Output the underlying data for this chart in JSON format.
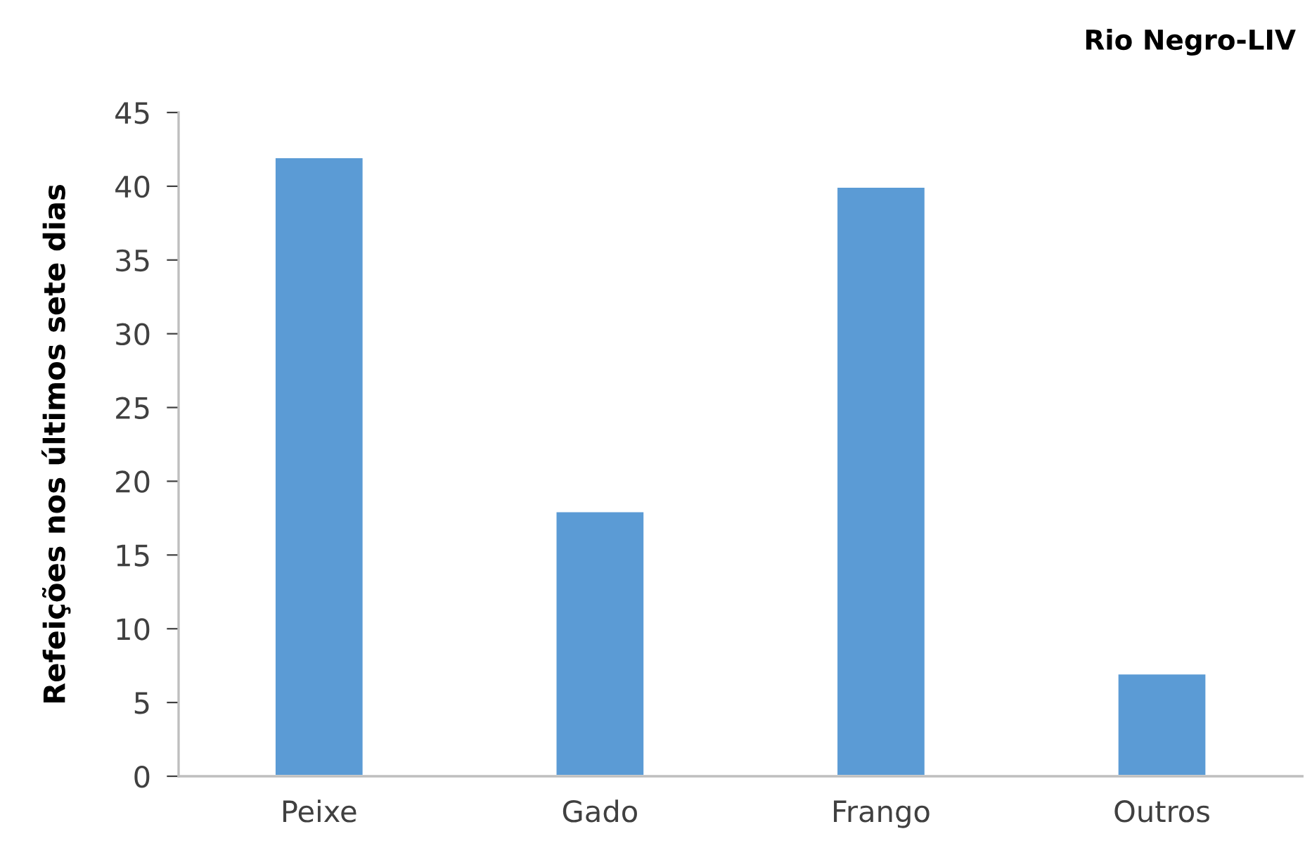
{
  "chart_data": {
    "type": "bar",
    "title": "Rio Negro-LIV",
    "ylabel": "Refeições nos últimos sete dias",
    "categories": [
      "Peixe",
      "Gado",
      "Frango",
      "Outros"
    ],
    "values": [
      42,
      18,
      40,
      7
    ],
    "color": "#5b9bd5",
    "ylim": [
      0,
      45
    ],
    "yticks": [
      0,
      5,
      10,
      15,
      20,
      25,
      30,
      35,
      40,
      45
    ],
    "grid": false,
    "legend": false
  }
}
